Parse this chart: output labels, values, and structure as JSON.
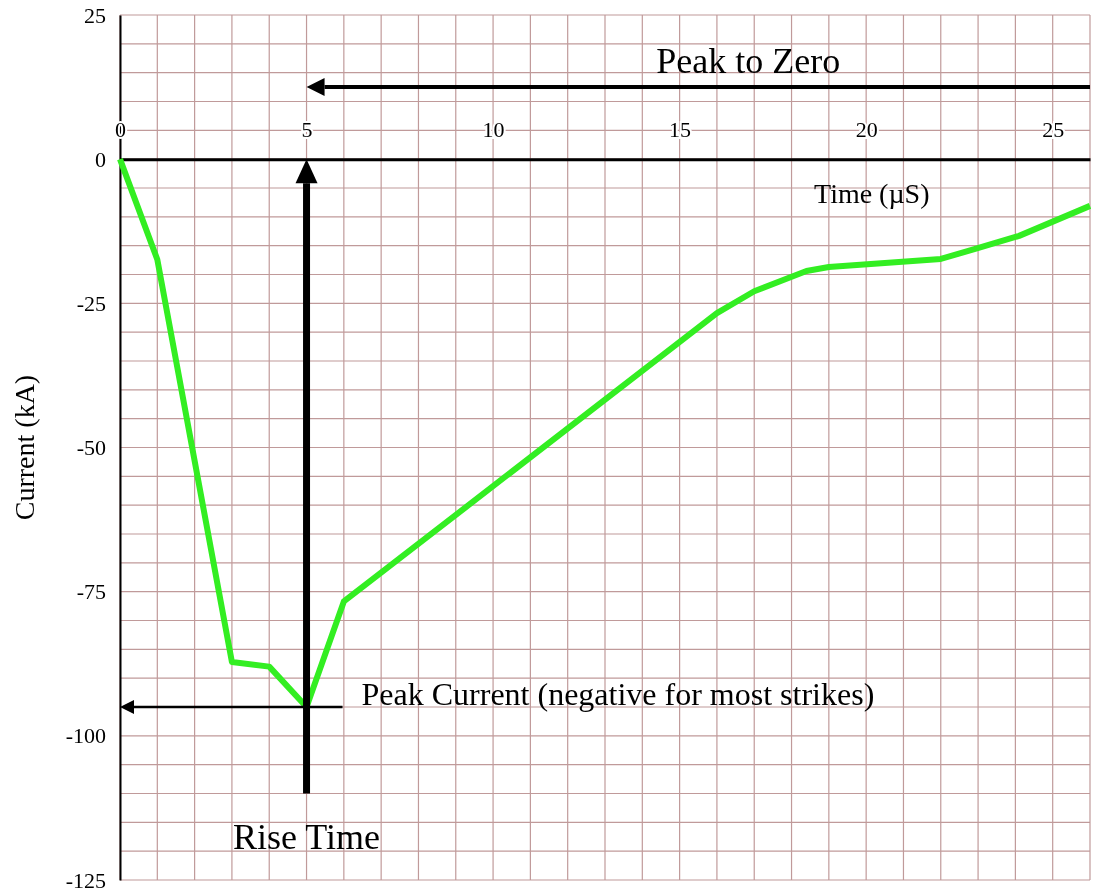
{
  "chart_data": {
    "type": "line",
    "xlabel": "Time (µS)",
    "ylabel": "Current (kA)",
    "x": [
      0,
      1,
      3,
      4,
      5,
      6,
      16,
      17,
      18.4,
      19,
      22,
      22.9,
      24.1,
      26
    ],
    "series": [
      {
        "color": "#33ee22",
        "values": [
          0,
          -17.4,
          -87.2,
          -88,
          -95,
          -76.7,
          -26.7,
          -22.9,
          -19.4,
          -18.7,
          -17.3,
          -15.6,
          -13.3,
          -8.1
        ]
      }
    ],
    "xlim": [
      0,
      26
    ],
    "ylim": [
      -125,
      25
    ],
    "xticks": [
      0,
      {
        "value": 1,
        "label": null
      },
      {
        "value": 2,
        "label": null
      },
      {
        "value": 3,
        "label": null
      },
      {
        "value": 4,
        "label": null
      },
      5,
      {
        "value": 6,
        "label": null
      },
      {
        "value": 7,
        "label": null
      },
      {
        "value": 8,
        "label": null
      },
      {
        "value": 9,
        "label": null
      },
      10,
      {
        "value": 11,
        "label": null
      },
      {
        "value": 12,
        "label": null
      },
      {
        "value": 13,
        "label": null
      },
      {
        "value": 14,
        "label": null
      },
      15,
      {
        "value": 16,
        "label": null
      },
      {
        "value": 17,
        "label": null
      },
      {
        "value": 18,
        "label": null
      },
      {
        "value": 19,
        "label": null
      },
      20,
      {
        "value": 21,
        "label": null
      },
      {
        "value": 22,
        "label": null
      },
      {
        "value": 23,
        "label": null
      },
      {
        "value": 24,
        "label": null
      },
      25,
      {
        "value": 26,
        "label": null
      }
    ],
    "yticks": [
      -125,
      {
        "value": -120,
        "label": null
      },
      {
        "value": -115,
        "label": null
      },
      {
        "value": -110,
        "label": null
      },
      {
        "value": -105,
        "label": null
      },
      -100,
      {
        "value": -95,
        "label": null
      },
      {
        "value": -90,
        "label": null
      },
      {
        "value": -85,
        "label": null
      },
      {
        "value": -80,
        "label": null
      },
      -75,
      {
        "value": -70,
        "label": null
      },
      {
        "value": -65,
        "label": null
      },
      {
        "value": -60,
        "label": null
      },
      {
        "value": -55,
        "label": null
      },
      -50,
      {
        "value": -45,
        "label": null
      },
      {
        "value": -40,
        "label": null
      },
      {
        "value": -35,
        "label": null
      },
      {
        "value": -30,
        "label": null
      },
      -25,
      {
        "value": -20,
        "label": null
      },
      {
        "value": -15,
        "label": null
      },
      {
        "value": -10,
        "label": null
      },
      {
        "value": -5,
        "label": null
      },
      0,
      {
        "value": 5,
        "label": null
      },
      {
        "value": 10,
        "label": null
      },
      {
        "value": 15,
        "label": null
      },
      {
        "value": 20,
        "label": null
      },
      25
    ],
    "grid": true,
    "marker": "none",
    "line_style": "solid",
    "annotations": [
      "Peak to Zero",
      {
        "text": "Peak Current (negative for most strikes)",
        "x": 5,
        "y": -95
      },
      "Rise Time"
    ]
  }
}
